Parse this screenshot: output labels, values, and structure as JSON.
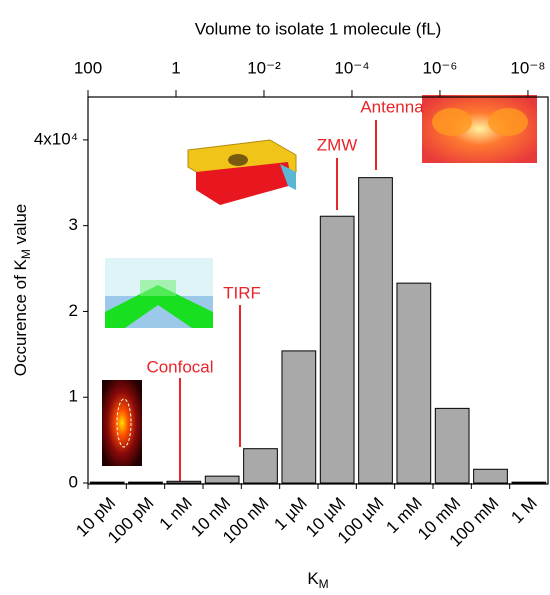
{
  "chart_data": {
    "type": "bar",
    "top_axis_title": "Volume to isolate 1 molecule (fL)",
    "ylabel": [
      "Occurence of K",
      "M",
      " value"
    ],
    "xlabel": [
      "K",
      "M"
    ],
    "categories": [
      "10 pM",
      "100 pM",
      "1 nM",
      "10 nM",
      "100 nM",
      "1 µM",
      "10 µM",
      "100 µM",
      "1 mM",
      "10 mM",
      "100 mM",
      "1 M"
    ],
    "values": [
      0.01,
      0.01,
      0.02,
      0.08,
      0.4,
      1.54,
      3.11,
      3.56,
      2.33,
      0.87,
      0.16,
      0.01
    ],
    "color": "#a9a9a9",
    "ylim": [
      0,
      4.5
    ],
    "yticks": [
      0,
      1,
      2,
      3,
      {
        "value": 4,
        "label": "4x10⁴"
      }
    ],
    "x2scale": "log",
    "x2lim": [
      100,
      3.5e-09
    ],
    "x2ticks": [
      100,
      1,
      {
        "value": 0.01,
        "label": "10⁻²"
      },
      {
        "value": 0.0001,
        "label": "10⁻⁴"
      },
      {
        "value": 1e-06,
        "label": "10⁻⁶"
      },
      {
        "value": 1e-08,
        "label": "10⁻⁸"
      }
    ],
    "annotations": [
      "Confocal",
      "TIRF",
      "ZMW",
      "Antenna"
    ]
  }
}
